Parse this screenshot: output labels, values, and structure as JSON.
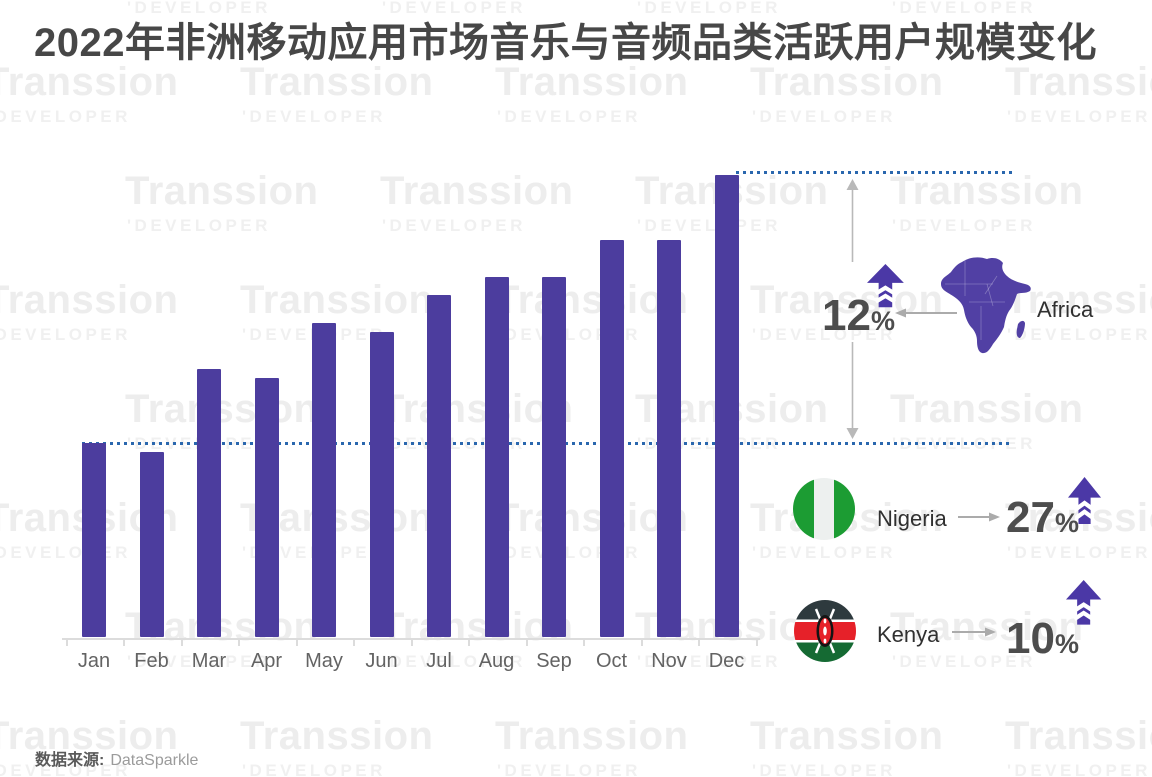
{
  "title": "2022年非洲移动应用市场音乐与音频品类活跃用户规模变化",
  "watermark": {
    "brand": "Transsion",
    "sub": "'DEVELOPER"
  },
  "chart_data": {
    "type": "bar",
    "title": "2022年非洲移动应用市场音乐与音频品类活跃用户规模变化",
    "categories": [
      "Jan",
      "Feb",
      "Mar",
      "Apr",
      "May",
      "Jun",
      "Jul",
      "Aug",
      "Sep",
      "Oct",
      "Nov",
      "Dec"
    ],
    "values": [
      42,
      40,
      58,
      56,
      68,
      66,
      74,
      78,
      78,
      86,
      86,
      100
    ],
    "xlabel": "",
    "ylabel": "",
    "ylim": [
      0,
      100
    ],
    "grid": false,
    "legend": "none",
    "bar_color": "#4C3D9E",
    "reference_lines": [
      {
        "at_value": 42,
        "style": "dotted",
        "color": "#2a67ae",
        "meaning": "Jan level"
      },
      {
        "at_value": 100,
        "style": "dotted",
        "color": "#2a67ae",
        "meaning": "Dec level"
      }
    ]
  },
  "annotations": {
    "africa": {
      "label": "Africa",
      "value": "12",
      "sign": "%"
    },
    "nigeria": {
      "label": "Nigeria",
      "value": "27",
      "sign": "%"
    },
    "kenya": {
      "label": "Kenya",
      "value": "10",
      "sign": "%"
    }
  },
  "source": {
    "prefix": "数据来源:",
    "name": "DataSparkle"
  },
  "colors": {
    "bar": "#4C3D9E",
    "dotted_line": "#2a67ae",
    "title_text": "#474747",
    "pct_text": "#4d4d4d",
    "map_fill": "#5140A4",
    "up_arrow": "#4B38A6",
    "gray_arrow": "#ababab",
    "watermark": "#ededed",
    "nigeria_green": "#1C9C33",
    "kenya_black": "#2E3A3E",
    "kenya_red": "#E62129",
    "kenya_green": "#156A33"
  }
}
